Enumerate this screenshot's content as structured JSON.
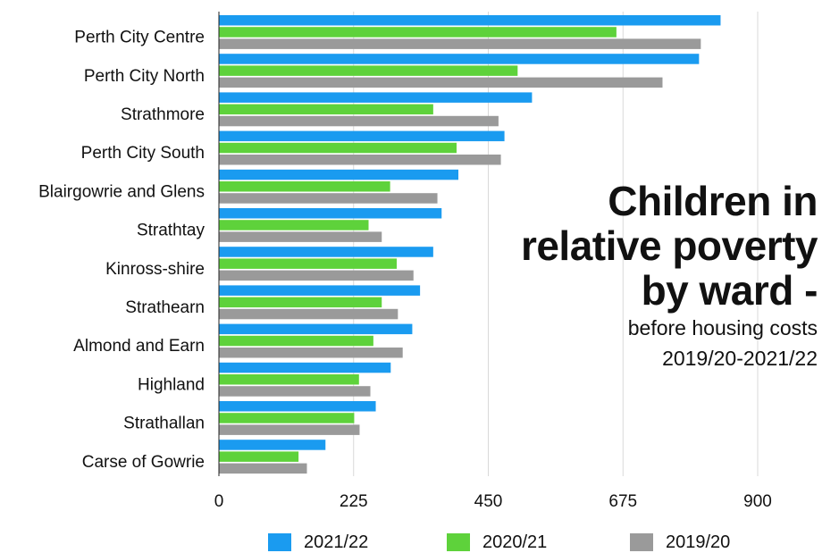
{
  "chart_data": {
    "type": "bar",
    "orientation": "horizontal",
    "title_lines": [
      "Children in",
      "relative poverty",
      "by ward -"
    ],
    "subtitle_lines": [
      "before housing costs",
      "2019/20-2021/22"
    ],
    "categories": [
      "Perth City Centre",
      "Perth City North",
      "Strathmore",
      "Perth City South",
      "Blairgowrie and Glens",
      "Strathtay",
      "Kinross-shire",
      "Strathearn",
      "Almond and Earn",
      "Highland",
      "Strathallan",
      "Carse of Gowrie"
    ],
    "series": [
      {
        "name": "2021/22",
        "color": "#1a9bf0",
        "values": [
          838,
          802,
          523,
          477,
          400,
          372,
          358,
          336,
          323,
          287,
          262,
          178
        ]
      },
      {
        "name": "2020/21",
        "color": "#5ed23b",
        "values": [
          664,
          499,
          358,
          397,
          286,
          250,
          297,
          272,
          258,
          234,
          226,
          133
        ]
      },
      {
        "name": "2019/20",
        "color": "#9a9a9a",
        "values": [
          805,
          741,
          467,
          471,
          365,
          272,
          325,
          299,
          307,
          253,
          235,
          147
        ]
      }
    ],
    "xlim": [
      0,
      900
    ],
    "xticks": [
      0,
      225,
      450,
      675,
      900
    ],
    "xlabel": "",
    "ylabel": "",
    "grid": "vertical",
    "legend_position": "bottom"
  }
}
